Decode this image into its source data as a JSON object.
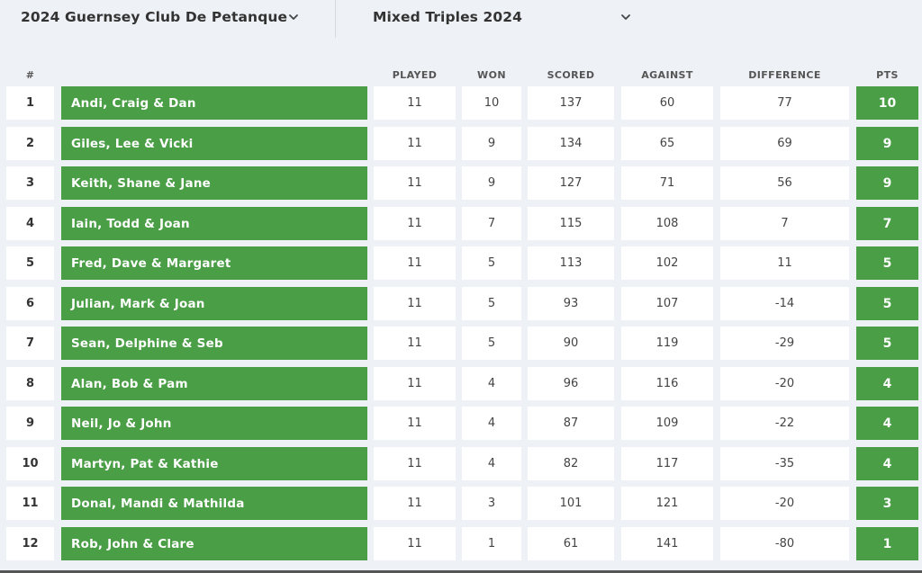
{
  "selectors": {
    "club": "2024 Guernsey Club De Petanque",
    "competition": "Mixed Triples 2024"
  },
  "columns": {
    "rank": "#",
    "played": "PLAYED",
    "won": "WON",
    "scored": "SCORED",
    "against": "AGAINST",
    "difference": "DIFFERENCE",
    "pts": "PTS"
  },
  "colors": {
    "team_bg": "#4a9e46",
    "page_bg": "#eef1f5"
  },
  "standings": [
    {
      "rank": "1",
      "team": "Andi, Craig & Dan",
      "played": "11",
      "won": "10",
      "scored": "137",
      "against": "60",
      "difference": "77",
      "pts": "10"
    },
    {
      "rank": "2",
      "team": "Giles, Lee & Vicki",
      "played": "11",
      "won": "9",
      "scored": "134",
      "against": "65",
      "difference": "69",
      "pts": "9"
    },
    {
      "rank": "3",
      "team": "Keith, Shane & Jane",
      "played": "11",
      "won": "9",
      "scored": "127",
      "against": "71",
      "difference": "56",
      "pts": "9"
    },
    {
      "rank": "4",
      "team": "Iain, Todd & Joan",
      "played": "11",
      "won": "7",
      "scored": "115",
      "against": "108",
      "difference": "7",
      "pts": "7"
    },
    {
      "rank": "5",
      "team": "Fred, Dave & Margaret",
      "played": "11",
      "won": "5",
      "scored": "113",
      "against": "102",
      "difference": "11",
      "pts": "5"
    },
    {
      "rank": "6",
      "team": "Julian, Mark & Joan",
      "played": "11",
      "won": "5",
      "scored": "93",
      "against": "107",
      "difference": "-14",
      "pts": "5"
    },
    {
      "rank": "7",
      "team": "Sean, Delphine & Seb",
      "played": "11",
      "won": "5",
      "scored": "90",
      "against": "119",
      "difference": "-29",
      "pts": "5"
    },
    {
      "rank": "8",
      "team": "Alan, Bob & Pam",
      "played": "11",
      "won": "4",
      "scored": "96",
      "against": "116",
      "difference": "-20",
      "pts": "4"
    },
    {
      "rank": "9",
      "team": "Neil, Jo & John",
      "played": "11",
      "won": "4",
      "scored": "87",
      "against": "109",
      "difference": "-22",
      "pts": "4"
    },
    {
      "rank": "10",
      "team": "Martyn, Pat & Kathie",
      "played": "11",
      "won": "4",
      "scored": "82",
      "against": "117",
      "difference": "-35",
      "pts": "4"
    },
    {
      "rank": "11",
      "team": "Donal, Mandi & Mathilda",
      "played": "11",
      "won": "3",
      "scored": "101",
      "against": "121",
      "difference": "-20",
      "pts": "3"
    },
    {
      "rank": "12",
      "team": "Rob, John & Clare",
      "played": "11",
      "won": "1",
      "scored": "61",
      "against": "141",
      "difference": "-80",
      "pts": "1"
    }
  ]
}
